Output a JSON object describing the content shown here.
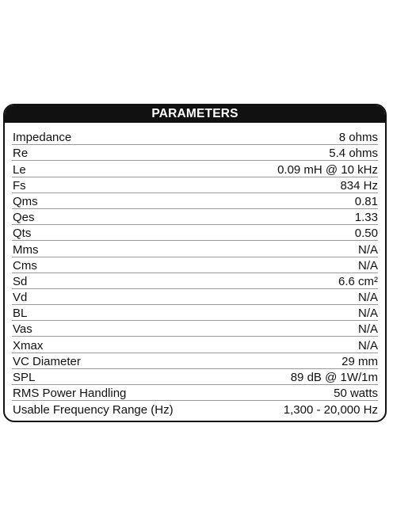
{
  "table": {
    "header": "PARAMETERS",
    "rows": [
      {
        "label": "Impedance",
        "value": "8 ohms"
      },
      {
        "label": "Re",
        "value": "5.4 ohms"
      },
      {
        "label": "Le",
        "value": "0.09 mH @ 10 kHz"
      },
      {
        "label": "Fs",
        "value": "834 Hz"
      },
      {
        "label": "Qms",
        "value": "0.81"
      },
      {
        "label": "Qes",
        "value": "1.33"
      },
      {
        "label": "Qts",
        "value": "0.50"
      },
      {
        "label": "Mms",
        "value": "N/A"
      },
      {
        "label": "Cms",
        "value": "N/A"
      },
      {
        "label": "Sd",
        "value": "6.6 cm²"
      },
      {
        "label": "Vd",
        "value": "N/A"
      },
      {
        "label": "BL",
        "value": "N/A"
      },
      {
        "label": "Vas",
        "value": "N/A"
      },
      {
        "label": "Xmax",
        "value": "N/A"
      },
      {
        "label": "VC Diameter",
        "value": "29 mm"
      },
      {
        "label": "SPL",
        "value": "89 dB @ 1W/1m"
      },
      {
        "label": "RMS Power Handling",
        "value": "50 watts"
      },
      {
        "label": "Usable Frequency Range (Hz)",
        "value": "1,300 - 20,000 Hz"
      }
    ]
  }
}
